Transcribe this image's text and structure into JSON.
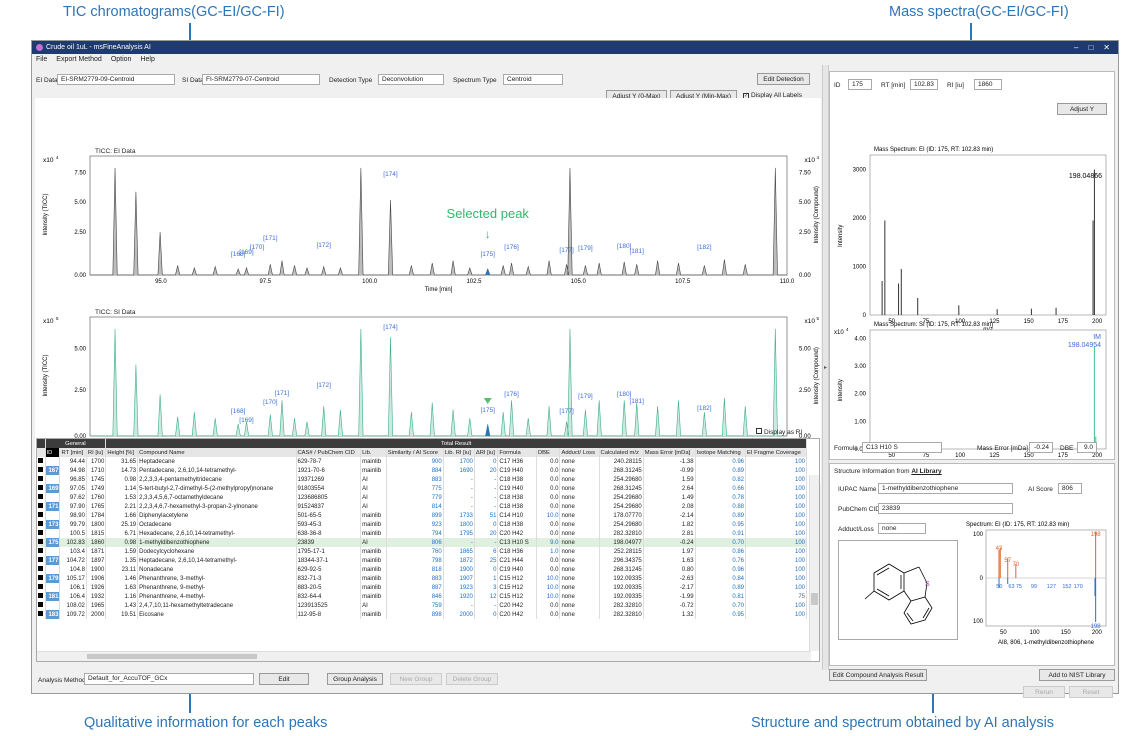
{
  "callouts": {
    "tic": "TIC chromatograms(GC-EI/GC-FI)",
    "mass": "Mass spectra(GC-EI/GC-FI)",
    "qual": "Qualitative information for each peaks",
    "struct": "Structure and spectrum obtained by AI analysis"
  },
  "window": {
    "title": "Crude oil 1uL - msFineAnalysis AI",
    "controls": [
      "–",
      "□",
      "✕"
    ]
  },
  "menu": [
    "File",
    "Export Method",
    "Option",
    "Help"
  ],
  "top": {
    "ei_label": "EI Data",
    "ei_value": "EI-SRM2779-09-Centroid",
    "si_label": "SI Data",
    "si_value": "FI-SRM2779-07-Centroid",
    "det_label": "Detection Type",
    "det_value": "Deconvolution",
    "spec_label": "Spectrum Type",
    "spec_value": "Centroid",
    "edit_detection": "Edit Detection",
    "adjust_y0": "Adjust Y (0-Max)",
    "adjust_ymm": "Adjust Y (Min-Max)",
    "display_all": "Display All Labels"
  },
  "tic_ei": {
    "title": "TICC: EI Data",
    "exp": "x10",
    "exp_pow": "4",
    "ylabel": "Intensity (TICC)",
    "yrlabel": "Intensity (Compound)",
    "yticks": [
      "7.50",
      "5.00",
      "2.50",
      "0.00"
    ],
    "yrticks": [
      "7.50",
      "5.00",
      "2.50",
      "0.00"
    ],
    "xticks": [
      "95.0",
      "97.5",
      "100.0",
      "102.5",
      "105.0",
      "107.5",
      "110.0"
    ],
    "xlabel": "Time [min]",
    "selected": "Selected peak",
    "labels": [
      "[174]",
      "[171]",
      "[170]",
      "[168]",
      "[169]",
      "[172]",
      "[175]",
      "[176]",
      "[177]",
      "[179]",
      "[180]",
      "[181]",
      "[182]"
    ]
  },
  "tic_si": {
    "title": "TICC: SI Data",
    "exp": "x10",
    "exp_pow": "5",
    "ylabel": "Intensity (TICC)",
    "yrlabel": "Intensity (Compound)",
    "yticks": [
      "5.00",
      "2.50",
      "0.00"
    ],
    "yrticks": [
      "5.00",
      "2.50",
      "0.00"
    ],
    "xticks": [
      "95.0",
      "97.5",
      "100.0",
      "102.5",
      "105.0",
      "107.5",
      "110.0"
    ],
    "xlabel": "Time [min]",
    "labels": [
      "[174]",
      "[172]",
      "[171]",
      "[170]",
      "[168]",
      "[169]",
      "[175]",
      "[176]",
      "[177]",
      "[179]",
      "[180]",
      "[181]",
      "[182]"
    ]
  },
  "display_ri": "Display as RI",
  "table": {
    "group_general": "General",
    "group_total": "Total Result",
    "headers": [
      "ID",
      "RT [min]",
      "RI [iu]",
      "Height [%]",
      "Compound Name",
      "CAS# / PubChem CID",
      "Lib.",
      "Similarity / AI Score",
      "Lib. RI [iu]",
      "ΔRI [iu]",
      "Formula",
      "DBE",
      "Adduct/ Loss",
      "Calculated m/z",
      "Mass Error [mDa]",
      "Isotope Matching",
      "EI Fragme Coverage"
    ],
    "rows": [
      [
        "166",
        "94.44",
        "1700",
        "31.65",
        "Heptadecane",
        "629-78-7",
        "mainlib",
        "900",
        "1700",
        "0",
        "C17 H36",
        "0.0",
        "none",
        "240.28115",
        "-1.38",
        "0.96",
        "100"
      ],
      [
        "167",
        "94.98",
        "1710",
        "14.73",
        "Pentadecane, 2,6,10,14-tetramethyl-",
        "1921-70-6",
        "mainlib",
        "884",
        "1690",
        "20",
        "C19 H40",
        "0.0",
        "none",
        "268.31245",
        "-0.99",
        "0.89",
        "100"
      ],
      [
        "168",
        "96.85",
        "1745",
        "0.98",
        "2,2,3,3,4-pentamethyltridecane",
        "19371269",
        "AI",
        "883",
        "-",
        "-",
        "C18 H38",
        "0.0",
        "none",
        "254.29680",
        "1.59",
        "0.82",
        "100"
      ],
      [
        "169",
        "97.05",
        "1749",
        "1.14",
        "5-tert-butyl-2,7-dimethyl-5-(2-methylpropyl)nonane",
        "91803554",
        "AI",
        "775",
        "-",
        "-",
        "C19 H40",
        "0.0",
        "none",
        "268.31245",
        "2.64",
        "0.66",
        "100"
      ],
      [
        "170",
        "97.62",
        "1760",
        "1.53",
        "2,3,3,4,5,6,7-octamethyldecane",
        "123686805",
        "AI",
        "779",
        "-",
        "-",
        "C18 H38",
        "0.0",
        "none",
        "254.29680",
        "1.49",
        "0.78",
        "100"
      ],
      [
        "171",
        "97.90",
        "1765",
        "2.21",
        "2,2,3,4,6,7-hexamethyl-3-propan-2-ylnonane",
        "91524837",
        "AI",
        "814",
        "-",
        "-",
        "C18 H38",
        "0.0",
        "none",
        "254.29680",
        "2.08",
        "0.88",
        "100"
      ],
      [
        "172",
        "98.90",
        "1784",
        "1.66",
        "Diphenylacetylene",
        "501-65-5",
        "mainlib",
        "899",
        "1733",
        "51",
        "C14 H10",
        "10.0",
        "none",
        "178.07770",
        "-2.14",
        "0.89",
        "100"
      ],
      [
        "173",
        "99.79",
        "1800",
        "25.19",
        "Octadecane",
        "593-45-3",
        "mainlib",
        "923",
        "1800",
        "0",
        "C18 H38",
        "0.0",
        "none",
        "254.29680",
        "1.82",
        "0.95",
        "100"
      ],
      [
        "174",
        "100.5",
        "1815",
        "6.71",
        "Hexadecane, 2,6,10,14-tetramethyl-",
        "638-36-8",
        "mainlib",
        "794",
        "1795",
        "20",
        "C20 H42",
        "0.0",
        "none",
        "282.32810",
        "2.81",
        "0.91",
        "100"
      ],
      [
        "175",
        "102.83",
        "1860",
        "0.98",
        "1-methyldibenzothiophene",
        "23839",
        "AI",
        "806",
        "-",
        "-",
        "C13 H10 S",
        "9.0",
        "none",
        "198.04977",
        "-0.24",
        "0.70",
        "100"
      ],
      [
        "176",
        "103.4",
        "1871",
        "1.59",
        "Dodecylcyclohexane",
        "1795-17-1",
        "mainlib",
        "760",
        "1865",
        "6",
        "C18 H36",
        "1.0",
        "none",
        "252.28115",
        "1.97",
        "0.86",
        "100"
      ],
      [
        "177",
        "104.72",
        "1897",
        "1.35",
        "Heptadecane, 2,6,10,14-tetramethyl-",
        "18344-37-1",
        "mainlib",
        "798",
        "1872",
        "25",
        "C21 H44",
        "0.0",
        "none",
        "296.34375",
        "1.63",
        "0.76",
        "100"
      ],
      [
        "178",
        "104.8",
        "1900",
        "23.11",
        "Nonadecane",
        "629-92-5",
        "mainlib",
        "818",
        "1900",
        "0",
        "C19 H40",
        "0.0",
        "none",
        "268.31245",
        "0.80",
        "0.96",
        "100"
      ],
      [
        "179",
        "105.17",
        "1906",
        "1.46",
        "Phenanthrene, 3-methyl-",
        "832-71-3",
        "mainlib",
        "883",
        "1907",
        "1",
        "C15 H12",
        "10.0",
        "none",
        "192.09335",
        "-2.63",
        "0.84",
        "100"
      ],
      [
        "180",
        "106.1",
        "1926",
        "1.63",
        "Phenanthrene, 9-methyl-",
        "883-20-5",
        "mainlib",
        "887",
        "1923",
        "3",
        "C15 H12",
        "10.0",
        "none",
        "192.09335",
        "-2.17",
        "0.89",
        "100"
      ],
      [
        "181",
        "106.4",
        "1932",
        "1.16",
        "Phenanthrene, 4-methyl-",
        "832-64-4",
        "mainlib",
        "846",
        "1920",
        "12",
        "C15 H12",
        "10.0",
        "none",
        "192.09335",
        "-1.99",
        "0.81",
        "75"
      ],
      [
        "182",
        "108.02",
        "1965",
        "1.43",
        "2,4,7,10,11-hexamethyltetradecane",
        "123913525",
        "AI",
        "759",
        "-",
        "-",
        "C20 H42",
        "0.0",
        "none",
        "282.32810",
        "-0.72",
        "0.70",
        "100"
      ],
      [
        "183",
        "109.72",
        "2000",
        "19.51",
        "Eicosane",
        "112-95-8",
        "mainlib",
        "898",
        "2000",
        "0",
        "C20 H42",
        "0.0",
        "none",
        "282.32810",
        "1.32",
        "0.95",
        "100"
      ]
    ],
    "selected_index": 9
  },
  "bottom": {
    "method_label": "Analysis Method",
    "method_value": "Default_for_AccuTOF_GCx",
    "edit": "Edit",
    "group_analysis": "Group Analysis",
    "new_group": "New Group",
    "delete_group": "Delete Group"
  },
  "right": {
    "id_label": "ID",
    "id_value": "175",
    "rt_label": "RT [min]",
    "rt_value": "102.83",
    "ri_label": "RI [iu]",
    "ri_value": "1860",
    "adjust_y": "Adjust Y",
    "ms_ei": {
      "title": "Mass Spectrum: EI (ID: 175, RT: 102.83 min)",
      "peak": "198.04866",
      "yticks": [
        "3000",
        "2000",
        "1000",
        "0"
      ],
      "xticks": [
        "50",
        "75",
        "100",
        "125",
        "150",
        "175",
        "200"
      ],
      "xlabel": "m/z",
      "ylabel": "Intensity"
    },
    "ms_si": {
      "title": "Mass Spectrum: SI (ID: 175, RT: 102.83 min)",
      "exp": "x10",
      "exp_pow": "4",
      "peak_label": "IM",
      "peak": "198.04954",
      "yticks": [
        "4.00",
        "3.00",
        "2.00",
        "1.00",
        "0.00"
      ],
      "xticks": [
        "50",
        "75",
        "100",
        "125",
        "150",
        "175",
        "200"
      ],
      "xlabel": "m/z",
      "ylabel": "Intensity"
    },
    "formula_label": "Formula",
    "formula_value": "C13 H10 S",
    "merr_label": "Mass Error [mDa]",
    "merr_value": "-0.24",
    "dbe_label": "DBE",
    "dbe_value": "9.0",
    "struct_title": "Structure Information from ",
    "struct_link": "AI Library",
    "iupac_label": "IUPAC Name",
    "iupac_value": "1-methyldibenzothiophene",
    "ai_label": "AI Score",
    "ai_value": "806",
    "cid_label": "PubChem CID",
    "cid_value": "23839",
    "adduct_label": "Adduct/Loss",
    "adduct_value": "none",
    "mini_title": "Spectrum: EI (ID: 175, RT: 102.83 min)",
    "mini_top": [
      "43",
      "57",
      "70",
      "198"
    ],
    "mini_mid": [
      "50",
      "63",
      "75",
      "99",
      "127",
      "152",
      "170"
    ],
    "mini_bot": "198",
    "mini_yticks": [
      "100",
      "0",
      "100"
    ],
    "mini_xticks": [
      "50",
      "100",
      "150",
      "200"
    ],
    "mini_caption": "AI8, 806, 1-methyldibenzothiophene",
    "edit_compound": "Edit Compound Analysis Result",
    "add_nist": "Add to NIST Library",
    "rerun": "Rerun",
    "reset": "Reset"
  }
}
